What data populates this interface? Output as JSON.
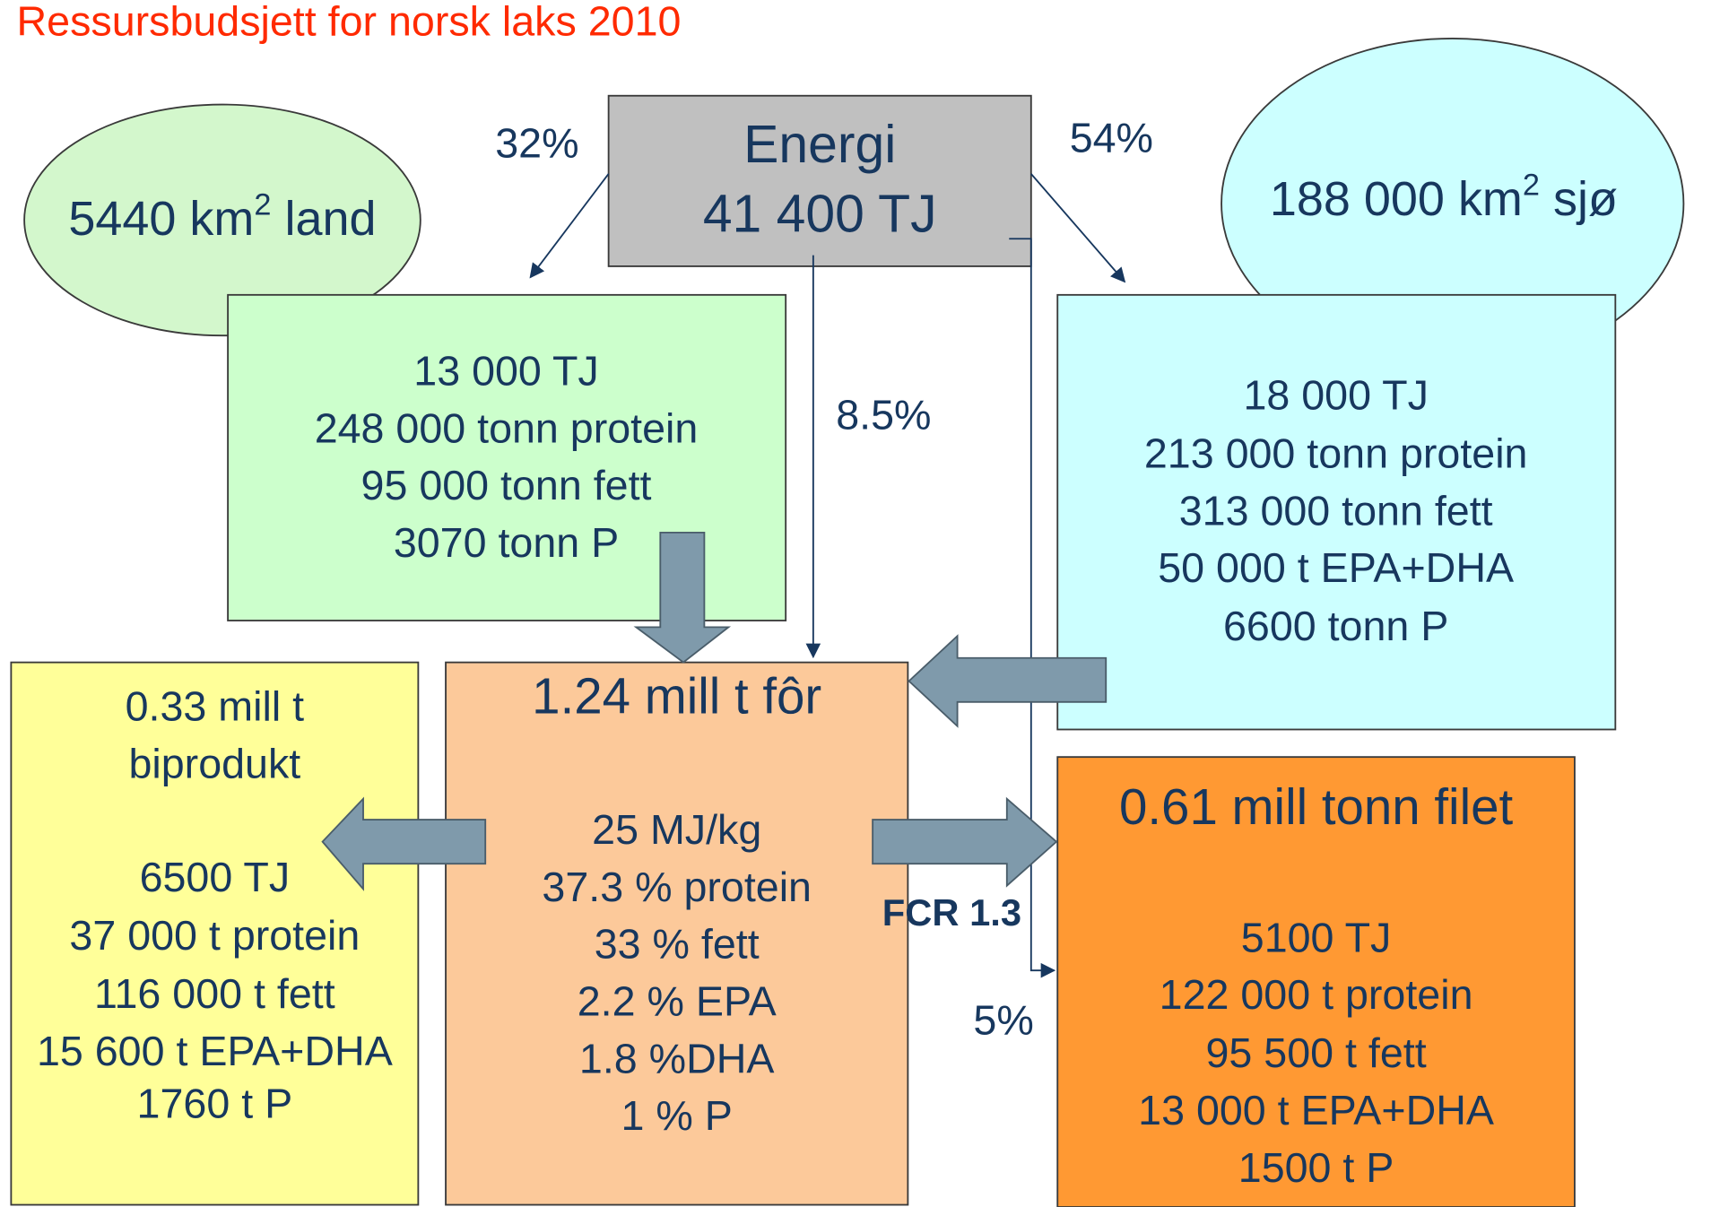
{
  "title": "Ressursbudsjett for norsk laks 2010",
  "land": {
    "parts": [
      "5440 km",
      "2",
      " land"
    ]
  },
  "sea": {
    "parts": [
      "188 000 km",
      "2",
      " sjø"
    ]
  },
  "energy": {
    "lines": [
      "Energi",
      "41 400 TJ"
    ]
  },
  "feed_land": {
    "lines": [
      "13 000 TJ",
      "248 000 tonn protein",
      "95 000 tonn fett",
      "3070 tonn P"
    ]
  },
  "feed_sea": {
    "lines": [
      "18 000 TJ",
      "213 000 tonn protein",
      "313 000 tonn fett",
      "50 000 t EPA+DHA",
      "6600 tonn P"
    ]
  },
  "byproduct": {
    "lines": [
      "0.33 mill t",
      "biprodukt",
      "6500 TJ",
      "37 000 t protein",
      "116 000 t fett",
      "15 600 t EPA+DHA",
      "1760 t P"
    ]
  },
  "feed": {
    "title": "1.24 mill t fôr",
    "lines": [
      "25 MJ/kg",
      "37.3 % protein",
      "33 % fett",
      "2.2 % EPA",
      "1.8 %DHA",
      "1 % P"
    ]
  },
  "fillet": {
    "title": "0.61 mill tonn filet",
    "lines": [
      "5100 TJ",
      "122 000 t protein",
      "95 500 t fett",
      "13 000 t EPA+DHA",
      "1500 t P"
    ]
  },
  "labels": {
    "land_share": "32%",
    "sea_share": "54%",
    "feed_share": "8.5%",
    "fillet_share": "5%",
    "fcr": "FCR 1.3"
  }
}
